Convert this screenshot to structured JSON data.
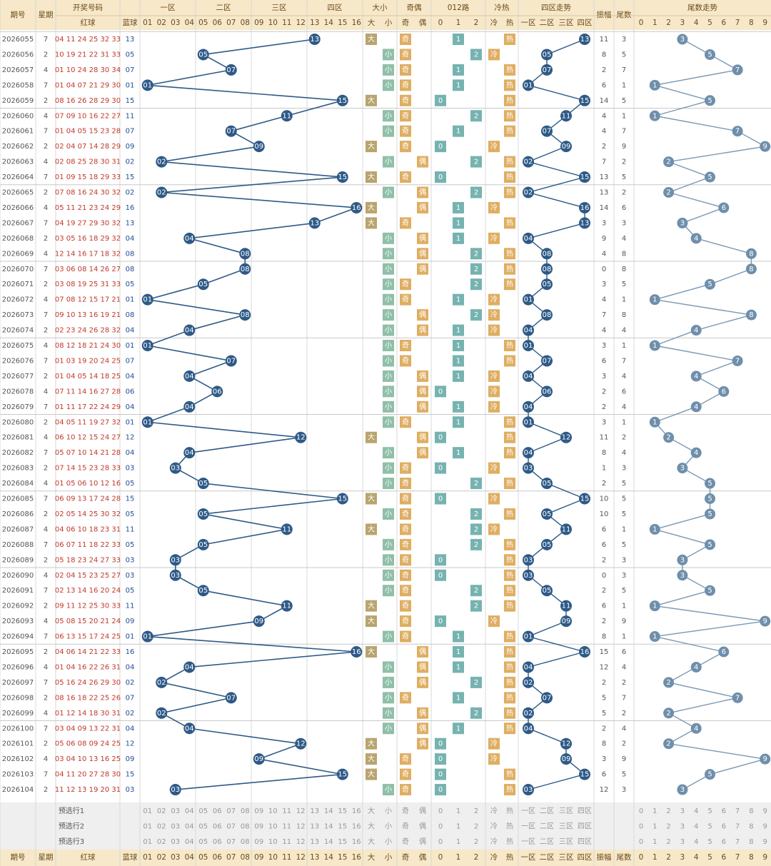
{
  "header": {
    "period": "期号",
    "week": "星期",
    "draw": "开奖号码",
    "red": "红球",
    "blue": "蓝球",
    "zones": [
      "一区",
      "二区",
      "三区",
      "四区"
    ],
    "size": "大小",
    "parity": "奇偶",
    "road": "012路",
    "hot": "冷热",
    "zone_trend": "四区走势",
    "amplitude": "振幅",
    "tail": "尾数",
    "tail_trend": "尾数走势"
  },
  "options": {
    "numbers": [
      "01",
      "02",
      "03",
      "04",
      "05",
      "06",
      "07",
      "08",
      "09",
      "10",
      "11",
      "12",
      "13",
      "14",
      "15",
      "16"
    ],
    "size": [
      "大",
      "小"
    ],
    "parity": [
      "奇",
      "偶"
    ],
    "road": [
      0,
      1,
      2
    ],
    "hot": [
      "冷",
      "热"
    ],
    "tails": [
      0,
      1,
      2,
      3,
      4,
      5,
      6,
      7,
      8,
      9
    ]
  },
  "preselect": [
    "预选行1",
    "预选行2",
    "预选行3"
  ],
  "rows": [
    {
      "period": "2026055",
      "week": 7,
      "red": "04 11 24 25 32 33",
      "blue": "13",
      "size": "大",
      "parity": "奇",
      "road": 1,
      "hot": "热",
      "zone": "四区",
      "amplitude": 11,
      "tail": 3
    },
    {
      "period": "2026056",
      "week": 2,
      "red": "10 19 21 22 31 33",
      "blue": "05",
      "size": "小",
      "parity": "奇",
      "road": 2,
      "hot": "冷",
      "zone": "二区",
      "amplitude": 8,
      "tail": 5
    },
    {
      "period": "2026057",
      "week": 4,
      "red": "01 10 24 28 30 34",
      "blue": "07",
      "size": "小",
      "parity": "奇",
      "road": 1,
      "hot": "热",
      "zone": "二区",
      "amplitude": 2,
      "tail": 7
    },
    {
      "period": "2026058",
      "week": 7,
      "red": "01 04 07 21 29 30",
      "blue": "01",
      "size": "小",
      "parity": "奇",
      "road": 1,
      "hot": "热",
      "zone": "一区",
      "amplitude": 6,
      "tail": 1
    },
    {
      "period": "2026059",
      "week": 2,
      "red": "08 16 26 28 29 30",
      "blue": "15",
      "size": "大",
      "parity": "奇",
      "road": 0,
      "hot": "热",
      "zone": "四区",
      "amplitude": 14,
      "tail": 5
    },
    {
      "period": "2026060",
      "week": 4,
      "red": "07 09 10 16 22 27",
      "blue": "11",
      "size": "小",
      "parity": "奇",
      "road": 2,
      "hot": "热",
      "zone": "三区",
      "amplitude": 4,
      "tail": 1
    },
    {
      "period": "2026061",
      "week": 7,
      "red": "01 04 05 15 23 28",
      "blue": "07",
      "size": "小",
      "parity": "奇",
      "road": 1,
      "hot": "热",
      "zone": "二区",
      "amplitude": 4,
      "tail": 7
    },
    {
      "period": "2026062",
      "week": 2,
      "red": "02 04 07 14 28 29",
      "blue": "09",
      "size": "大",
      "parity": "奇",
      "road": 0,
      "hot": "冷",
      "zone": "三区",
      "amplitude": 2,
      "tail": 9
    },
    {
      "period": "2026063",
      "week": 4,
      "red": "02 08 25 28 30 31",
      "blue": "02",
      "size": "小",
      "parity": "偶",
      "road": 2,
      "hot": "热",
      "zone": "一区",
      "amplitude": 7,
      "tail": 2
    },
    {
      "period": "2026064",
      "week": 7,
      "red": "01 09 15 18 29 33",
      "blue": "15",
      "size": "大",
      "parity": "奇",
      "road": 0,
      "hot": "热",
      "zone": "四区",
      "amplitude": 13,
      "tail": 5
    },
    {
      "period": "2026065",
      "week": 2,
      "red": "07 08 16 24 30 32",
      "blue": "02",
      "size": "小",
      "parity": "偶",
      "road": 2,
      "hot": "热",
      "zone": "一区",
      "amplitude": 13,
      "tail": 2
    },
    {
      "period": "2026066",
      "week": 4,
      "red": "05 11 21 23 24 29",
      "blue": "16",
      "size": "大",
      "parity": "偶",
      "road": 1,
      "hot": "冷",
      "zone": "四区",
      "amplitude": 14,
      "tail": 6
    },
    {
      "period": "2026067",
      "week": 7,
      "red": "04 19 27 29 30 32",
      "blue": "13",
      "size": "大",
      "parity": "奇",
      "road": 1,
      "hot": "热",
      "zone": "四区",
      "amplitude": 3,
      "tail": 3
    },
    {
      "period": "2026068",
      "week": 2,
      "red": "03 05 16 18 29 32",
      "blue": "04",
      "size": "小",
      "parity": "偶",
      "road": 1,
      "hot": "冷",
      "zone": "一区",
      "amplitude": 9,
      "tail": 4
    },
    {
      "period": "2026069",
      "week": 4,
      "red": "12 14 16 17 18 32",
      "blue": "08",
      "size": "小",
      "parity": "偶",
      "road": 2,
      "hot": "热",
      "zone": "二区",
      "amplitude": 4,
      "tail": 8
    },
    {
      "period": "2026070",
      "week": 7,
      "red": "03 06 08 14 26 27",
      "blue": "08",
      "size": "小",
      "parity": "偶",
      "road": 2,
      "hot": "热",
      "zone": "二区",
      "amplitude": 0,
      "tail": 8
    },
    {
      "period": "2026071",
      "week": 2,
      "red": "03 08 19 25 31 33",
      "blue": "05",
      "size": "小",
      "parity": "奇",
      "road": 2,
      "hot": "热",
      "zone": "二区",
      "amplitude": 3,
      "tail": 5
    },
    {
      "period": "2026072",
      "week": 4,
      "red": "07 08 12 15 17 21",
      "blue": "01",
      "size": "小",
      "parity": "奇",
      "road": 1,
      "hot": "冷",
      "zone": "一区",
      "amplitude": 4,
      "tail": 1
    },
    {
      "period": "2026073",
      "week": 7,
      "red": "09 10 13 16 19 21",
      "blue": "08",
      "size": "小",
      "parity": "偶",
      "road": 2,
      "hot": "冷",
      "zone": "二区",
      "amplitude": 7,
      "tail": 8
    },
    {
      "period": "2026074",
      "week": 2,
      "red": "02 23 24 26 28 32",
      "blue": "04",
      "size": "小",
      "parity": "偶",
      "road": 1,
      "hot": "冷",
      "zone": "一区",
      "amplitude": 4,
      "tail": 4
    },
    {
      "period": "2026075",
      "week": 4,
      "red": "08 12 18 21 24 30",
      "blue": "01",
      "size": "小",
      "parity": "奇",
      "road": 1,
      "hot": "热",
      "zone": "一区",
      "amplitude": 3,
      "tail": 1
    },
    {
      "period": "2026076",
      "week": 7,
      "red": "01 03 19 20 24 25",
      "blue": "07",
      "size": "小",
      "parity": "奇",
      "road": 1,
      "hot": "热",
      "zone": "二区",
      "amplitude": 6,
      "tail": 7
    },
    {
      "period": "2026077",
      "week": 2,
      "red": "01 04 05 14 18 25",
      "blue": "04",
      "size": "小",
      "parity": "偶",
      "road": 1,
      "hot": "冷",
      "zone": "一区",
      "amplitude": 3,
      "tail": 4
    },
    {
      "period": "2026078",
      "week": 4,
      "red": "07 11 14 16 27 28",
      "blue": "06",
      "size": "小",
      "parity": "偶",
      "road": 0,
      "hot": "冷",
      "zone": "二区",
      "amplitude": 2,
      "tail": 6
    },
    {
      "period": "2026079",
      "week": 7,
      "red": "01 11 17 22 24 29",
      "blue": "04",
      "size": "小",
      "parity": "偶",
      "road": 1,
      "hot": "冷",
      "zone": "一区",
      "amplitude": 2,
      "tail": 4
    },
    {
      "period": "2026080",
      "week": 2,
      "red": "04 05 11 19 27 32",
      "blue": "01",
      "size": "小",
      "parity": "奇",
      "road": 1,
      "hot": "热",
      "zone": "一区",
      "amplitude": 3,
      "tail": 1
    },
    {
      "period": "2026081",
      "week": 4,
      "red": "06 10 12 15 24 27",
      "blue": "12",
      "size": "大",
      "parity": "偶",
      "road": 0,
      "hot": "热",
      "zone": "三区",
      "amplitude": 11,
      "tail": 2
    },
    {
      "period": "2026082",
      "week": 7,
      "red": "05 07 10 14 21 28",
      "blue": "04",
      "size": "小",
      "parity": "偶",
      "road": 1,
      "hot": "热",
      "zone": "一区",
      "amplitude": 8,
      "tail": 4
    },
    {
      "period": "2026083",
      "week": 2,
      "red": "07 14 15 23 28 33",
      "blue": "03",
      "size": "小",
      "parity": "奇",
      "road": 0,
      "hot": "冷",
      "zone": "一区",
      "amplitude": 1,
      "tail": 3
    },
    {
      "period": "2026084",
      "week": 4,
      "red": "01 05 06 10 12 16",
      "blue": "05",
      "size": "小",
      "parity": "奇",
      "road": 2,
      "hot": "热",
      "zone": "二区",
      "amplitude": 2,
      "tail": 5
    },
    {
      "period": "2026085",
      "week": 7,
      "red": "06 09 13 17 24 28",
      "blue": "15",
      "size": "大",
      "parity": "奇",
      "road": 0,
      "hot": "冷",
      "zone": "四区",
      "amplitude": 10,
      "tail": 5
    },
    {
      "period": "2026086",
      "week": 2,
      "red": "02 05 14 25 30 32",
      "blue": "05",
      "size": "小",
      "parity": "奇",
      "road": 2,
      "hot": "热",
      "zone": "二区",
      "amplitude": 10,
      "tail": 5
    },
    {
      "period": "2026087",
      "week": 4,
      "red": "04 06 10 18 23 31",
      "blue": "11",
      "size": "大",
      "parity": "奇",
      "road": 2,
      "hot": "冷",
      "zone": "三区",
      "amplitude": 6,
      "tail": 1
    },
    {
      "period": "2026088",
      "week": 7,
      "red": "06 07 11 18 22 33",
      "blue": "05",
      "size": "小",
      "parity": "奇",
      "road": 2,
      "hot": "热",
      "zone": "二区",
      "amplitude": 6,
      "tail": 5
    },
    {
      "period": "2026089",
      "week": 2,
      "red": "05 18 23 24 27 33",
      "blue": "03",
      "size": "小",
      "parity": "奇",
      "road": 0,
      "hot": "热",
      "zone": "一区",
      "amplitude": 2,
      "tail": 3
    },
    {
      "period": "2026090",
      "week": 4,
      "red": "02 04 15 23 25 27",
      "blue": "03",
      "size": "小",
      "parity": "奇",
      "road": 0,
      "hot": "热",
      "zone": "一区",
      "amplitude": 0,
      "tail": 3
    },
    {
      "period": "2026091",
      "week": 7,
      "red": "02 13 14 16 20 24",
      "blue": "05",
      "size": "小",
      "parity": "奇",
      "road": 2,
      "hot": "热",
      "zone": "二区",
      "amplitude": 2,
      "tail": 5
    },
    {
      "period": "2026092",
      "week": 2,
      "red": "09 11 12 25 30 33",
      "blue": "11",
      "size": "大",
      "parity": "奇",
      "road": 2,
      "hot": "热",
      "zone": "三区",
      "amplitude": 6,
      "tail": 1
    },
    {
      "period": "2026093",
      "week": 4,
      "red": "05 08 15 20 21 24",
      "blue": "09",
      "size": "大",
      "parity": "奇",
      "road": 0,
      "hot": "冷",
      "zone": "三区",
      "amplitude": 2,
      "tail": 9
    },
    {
      "period": "2026094",
      "week": 7,
      "red": "06 13 15 17 24 25",
      "blue": "01",
      "size": "小",
      "parity": "奇",
      "road": 1,
      "hot": "热",
      "zone": "一区",
      "amplitude": 8,
      "tail": 1
    },
    {
      "period": "2026095",
      "week": 2,
      "red": "04 06 14 21 22 33",
      "blue": "16",
      "size": "大",
      "parity": "偶",
      "road": 1,
      "hot": "热",
      "zone": "四区",
      "amplitude": 15,
      "tail": 6
    },
    {
      "period": "2026096",
      "week": 4,
      "red": "01 04 16 22 26 31",
      "blue": "04",
      "size": "小",
      "parity": "偶",
      "road": 1,
      "hot": "热",
      "zone": "一区",
      "amplitude": 12,
      "tail": 4
    },
    {
      "period": "2026097",
      "week": 7,
      "red": "05 16 24 26 29 30",
      "blue": "02",
      "size": "小",
      "parity": "偶",
      "road": 2,
      "hot": "热",
      "zone": "一区",
      "amplitude": 2,
      "tail": 2
    },
    {
      "period": "2026098",
      "week": 2,
      "red": "08 16 18 22 25 26",
      "blue": "07",
      "size": "小",
      "parity": "奇",
      "road": 1,
      "hot": "热",
      "zone": "二区",
      "amplitude": 5,
      "tail": 7
    },
    {
      "period": "2026099",
      "week": 4,
      "red": "01 12 14 18 30 31",
      "blue": "02",
      "size": "小",
      "parity": "偶",
      "road": 2,
      "hot": "热",
      "zone": "一区",
      "amplitude": 5,
      "tail": 2
    },
    {
      "period": "2026100",
      "week": 7,
      "red": "03 04 09 13 22 31",
      "blue": "04",
      "size": "小",
      "parity": "偶",
      "road": 1,
      "hot": "热",
      "zone": "一区",
      "amplitude": 2,
      "tail": 4
    },
    {
      "period": "2026101",
      "week": 2,
      "red": "05 06 08 09 24 25",
      "blue": "12",
      "size": "大",
      "parity": "偶",
      "road": 0,
      "hot": "冷",
      "zone": "三区",
      "amplitude": 8,
      "tail": 2
    },
    {
      "period": "2026102",
      "week": 4,
      "red": "03 04 10 13 16 25",
      "blue": "09",
      "size": "大",
      "parity": "奇",
      "road": 0,
      "hot": "冷",
      "zone": "三区",
      "amplitude": 3,
      "tail": 9
    },
    {
      "period": "2026103",
      "week": 7,
      "red": "04 11 20 27 28 30",
      "blue": "15",
      "size": "大",
      "parity": "奇",
      "road": 0,
      "hot": "热",
      "zone": "四区",
      "amplitude": 6,
      "tail": 5
    },
    {
      "period": "2026104",
      "week": 2,
      "red": "11 12 13 19 20 31",
      "blue": "03",
      "size": "小",
      "parity": "奇",
      "road": 0,
      "hot": "热",
      "zone": "一区",
      "amplitude": 12,
      "tail": 3
    }
  ]
}
